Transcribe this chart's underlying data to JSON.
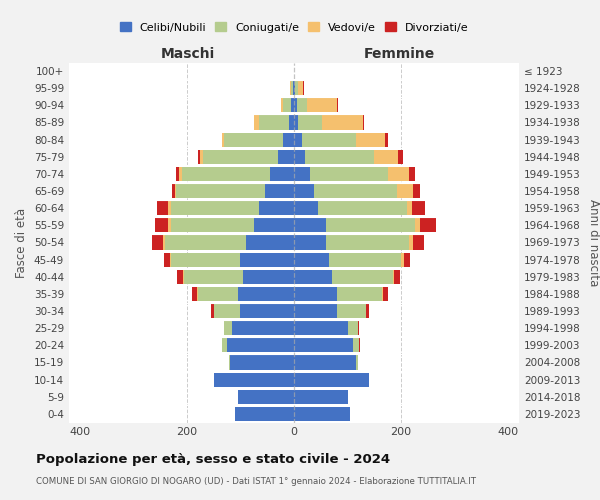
{
  "age_groups": [
    "0-4",
    "5-9",
    "10-14",
    "15-19",
    "20-24",
    "25-29",
    "30-34",
    "35-39",
    "40-44",
    "45-49",
    "50-54",
    "55-59",
    "60-64",
    "65-69",
    "70-74",
    "75-79",
    "80-84",
    "85-89",
    "90-94",
    "95-99",
    "100+"
  ],
  "birth_years": [
    "2019-2023",
    "2014-2018",
    "2009-2013",
    "2004-2008",
    "1999-2003",
    "1994-1998",
    "1989-1993",
    "1984-1988",
    "1979-1983",
    "1974-1978",
    "1969-1973",
    "1964-1968",
    "1959-1963",
    "1954-1958",
    "1949-1953",
    "1944-1948",
    "1939-1943",
    "1934-1938",
    "1929-1933",
    "1924-1928",
    "≤ 1923"
  ],
  "maschi": {
    "celibi": [
      110,
      105,
      150,
      120,
      125,
      115,
      100,
      105,
      95,
      100,
      90,
      75,
      65,
      55,
      45,
      30,
      20,
      10,
      5,
      2,
      0
    ],
    "coniugati": [
      0,
      0,
      0,
      2,
      10,
      15,
      50,
      75,
      110,
      130,
      150,
      155,
      165,
      165,
      165,
      140,
      110,
      55,
      15,
      3,
      0
    ],
    "vedovi": [
      0,
      0,
      0,
      0,
      0,
      0,
      0,
      2,
      2,
      2,
      5,
      5,
      5,
      3,
      5,
      5,
      5,
      10,
      5,
      2,
      0
    ],
    "divorziati": [
      0,
      0,
      0,
      0,
      0,
      0,
      5,
      8,
      12,
      10,
      20,
      25,
      20,
      5,
      5,
      5,
      0,
      0,
      0,
      0,
      0
    ]
  },
  "femmine": {
    "nubili": [
      105,
      100,
      140,
      115,
      110,
      100,
      80,
      80,
      70,
      65,
      60,
      60,
      45,
      38,
      30,
      20,
      15,
      8,
      5,
      2,
      0
    ],
    "coniugate": [
      0,
      0,
      0,
      5,
      12,
      20,
      55,
      85,
      115,
      135,
      155,
      165,
      165,
      155,
      145,
      130,
      100,
      45,
      20,
      5,
      0
    ],
    "vedove": [
      0,
      0,
      0,
      0,
      0,
      0,
      0,
      2,
      2,
      5,
      8,
      10,
      10,
      30,
      40,
      45,
      55,
      75,
      55,
      10,
      0
    ],
    "divorziate": [
      0,
      0,
      0,
      0,
      2,
      2,
      5,
      8,
      10,
      12,
      20,
      30,
      25,
      12,
      10,
      8,
      5,
      2,
      2,
      2,
      0
    ]
  },
  "colors": {
    "celibi_nubili": "#4472c4",
    "coniugati": "#b5cc8e",
    "vedovi": "#f5c06e",
    "divorziati": "#cc2222"
  },
  "xlim": 420,
  "title": "Popolazione per età, sesso e stato civile - 2024",
  "subtitle": "COMUNE DI SAN GIORGIO DI NOGARO (UD) - Dati ISTAT 1° gennaio 2024 - Elaborazione TUTTITALIA.IT",
  "xlabel_left": "Maschi",
  "xlabel_right": "Femmine",
  "ylabel_left": "Fasce di età",
  "ylabel_right": "Anni di nascita",
  "bg_color": "#f2f2f2",
  "plot_bg_color": "#ffffff"
}
